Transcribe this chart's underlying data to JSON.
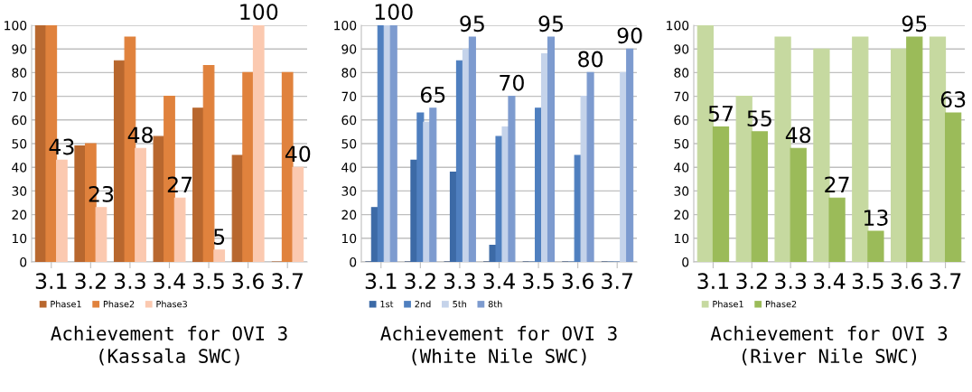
{
  "chart_data": [
    {
      "type": "bar",
      "title": "Achievement for OVI 3\n(Kassala SWC)",
      "categories": [
        "3.1",
        "3.2",
        "3.3",
        "3.4",
        "3.5",
        "3.6",
        "3.7"
      ],
      "ylim": [
        0,
        100
      ],
      "yticks": [
        0,
        10,
        20,
        30,
        40,
        50,
        60,
        70,
        80,
        90,
        100
      ],
      "grid": "y",
      "legend": "bottom",
      "series": [
        {
          "name": "Phase1",
          "color": "#b8672e",
          "values": [
            100,
            49,
            85,
            53,
            65,
            45,
            0
          ]
        },
        {
          "name": "Phase2",
          "color": "#e0823d",
          "values": [
            100,
            50,
            95,
            70,
            83,
            80,
            80
          ]
        },
        {
          "name": "Phase3",
          "color": "#fbc9b0",
          "values": [
            43,
            23,
            48,
            27,
            5,
            100,
            40
          ],
          "value_labels": [
            "43",
            "23",
            "48",
            "27",
            "5",
            "100",
            "40"
          ]
        }
      ]
    },
    {
      "type": "bar",
      "title": "Achievement for OVI 3\n(White Nile SWC)",
      "categories": [
        "3.1",
        "3.2",
        "3.3",
        "3.4",
        "3.5",
        "3.6",
        "3.7"
      ],
      "ylim": [
        0,
        100
      ],
      "yticks": [
        0,
        10,
        20,
        30,
        40,
        50,
        60,
        70,
        80,
        90,
        100
      ],
      "grid": "y",
      "legend": "bottom",
      "series": [
        {
          "color": "#1f3f6f",
          "values": [
            0,
            0,
            0,
            0,
            0,
            0,
            0
          ]
        },
        {
          "name": "1st",
          "color": "#3c6aa6",
          "values": [
            23,
            43,
            38,
            7,
            0,
            0,
            0
          ]
        },
        {
          "name": "2nd",
          "color": "#4f7fbf",
          "values": [
            100,
            63,
            85,
            53,
            65,
            45,
            0
          ]
        },
        {
          "name": "5th",
          "color": "#c5d3ea",
          "values": [
            100,
            59,
            90,
            57,
            88,
            70,
            80
          ]
        },
        {
          "name": "8th",
          "color": "#7d9bcf",
          "values": [
            100,
            65,
            95,
            70,
            95,
            80,
            90
          ],
          "value_labels": [
            "100",
            "65",
            "95",
            "70",
            "95",
            "80",
            "90"
          ]
        }
      ]
    },
    {
      "type": "bar",
      "title": "Achievement for OVI 3\n(River Nile SWC)",
      "categories": [
        "3.1",
        "3.2",
        "3.3",
        "3.4",
        "3.5",
        "3.6",
        "3.7"
      ],
      "ylim": [
        0,
        100
      ],
      "yticks": [
        0,
        10,
        20,
        30,
        40,
        50,
        60,
        70,
        80,
        90,
        100
      ],
      "grid": "y",
      "legend": "bottom",
      "series": [
        {
          "name": "Phase1",
          "color": "#c6d9a0",
          "values": [
            100,
            70,
            95,
            90,
            95,
            90,
            95
          ]
        },
        {
          "name": "Phase2",
          "color": "#9bbb59",
          "values": [
            57,
            55,
            48,
            27,
            13,
            95,
            63
          ],
          "value_labels": [
            "57",
            "55",
            "48",
            "27",
            "13",
            "95",
            "63"
          ]
        }
      ]
    }
  ]
}
